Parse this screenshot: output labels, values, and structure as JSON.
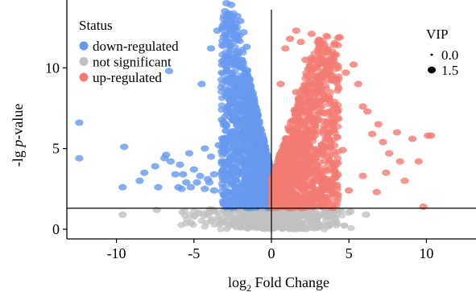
{
  "chart_data": {
    "type": "scatter",
    "title": "",
    "xlabel": "log₂ Fold Change",
    "ylabel_prefix": "-lg ",
    "ylabel_italic": "p",
    "ylabel_suffix": "-value",
    "xlim": [
      -13.2,
      13.2
    ],
    "ylim": [
      -0.6,
      14.2
    ],
    "x_ticks": [
      -10,
      -5,
      0,
      5,
      10
    ],
    "x_tick_labels": [
      "-10",
      "-5",
      "0",
      "5",
      "10"
    ],
    "y_ticks": [
      0,
      5,
      10
    ],
    "y_tick_labels": [
      "0",
      "5",
      "10"
    ],
    "grid": false,
    "reference_lines": {
      "vertical_x": 0,
      "horizontal_y": 1.3
    },
    "legend_status": {
      "title": "Status",
      "placement": "top-left",
      "entries": [
        {
          "label": "down-regulated",
          "color": "#6699EE"
        },
        {
          "label": "not significant",
          "color": "#C0C0C0"
        },
        {
          "label": "up-regulated",
          "color": "#F27B72"
        }
      ]
    },
    "legend_size": {
      "title": "VIP",
      "placement": "top-right",
      "entries": [
        {
          "label": "0.0",
          "vip": 0.0
        },
        {
          "label": "1.5",
          "vip": 1.5
        }
      ]
    },
    "colors": {
      "down": "#6699EE",
      "ns": "#C0C0C0",
      "up": "#F27B72"
    },
    "series": [
      {
        "status": "down-regulated",
        "points": [
          [
            -12.4,
            6.6
          ],
          [
            -12.4,
            4.4
          ],
          [
            -9.5,
            5.1
          ],
          [
            -9.6,
            2.6
          ],
          [
            -8.5,
            3.0
          ],
          [
            -8.2,
            3.5
          ],
          [
            -7.5,
            3.9
          ],
          [
            -7.3,
            2.6
          ],
          [
            -6.9,
            4.4
          ],
          [
            -6.8,
            4.6
          ],
          [
            -6.6,
            9.8
          ],
          [
            -6.5,
            4.2
          ],
          [
            -6.2,
            3.4
          ],
          [
            -6.0,
            2.6
          ],
          [
            -5.9,
            4.0
          ],
          [
            -5.8,
            2.5
          ],
          [
            -5.7,
            3.4
          ],
          [
            -5.5,
            2.9
          ],
          [
            -5.3,
            4.7
          ],
          [
            -5.2,
            2.6
          ],
          [
            -5.0,
            3.7
          ],
          [
            -4.8,
            2.9
          ],
          [
            -4.6,
            3.3
          ],
          [
            -4.5,
            9.0
          ],
          [
            -4.3,
            2.5
          ],
          [
            -4.3,
            5.0
          ],
          [
            -4.1,
            3.1
          ],
          [
            -4.0,
            2.9
          ],
          [
            -3.9,
            11.2
          ],
          [
            -3.9,
            4.5
          ],
          [
            -3.7,
            3.4
          ],
          [
            -3.7,
            2.4
          ],
          [
            -3.5,
            12.3
          ],
          [
            -3.4,
            5.2
          ],
          [
            -3.2,
            4.2
          ],
          [
            -3.0,
            13.5
          ],
          [
            -2.9,
            14.0
          ],
          [
            -2.6,
            13.9
          ],
          [
            -2.5,
            10.6
          ],
          [
            -2.2,
            13.2
          ],
          [
            -2.0,
            12.9
          ],
          [
            -1.8,
            12.2
          ],
          [
            -1.6,
            11.3
          ],
          [
            -1.2,
            6.5
          ],
          [
            -0.8,
            4.8
          ]
        ]
      },
      {
        "status": "not significant",
        "points": [
          [
            -9.6,
            0.9
          ],
          [
            -7.4,
            1.2
          ],
          [
            -5.2,
            0.4
          ],
          [
            -4.1,
            1.0
          ],
          [
            -3.4,
            0.6
          ],
          [
            -2.8,
            1.0
          ],
          [
            -2.5,
            0.3
          ],
          [
            -2.0,
            1.1
          ],
          [
            -1.7,
            0.5
          ],
          [
            -1.2,
            0.9
          ],
          [
            -0.9,
            0.2
          ],
          [
            -0.6,
            1.1
          ],
          [
            -0.4,
            0.6
          ],
          [
            -0.2,
            0.1
          ],
          [
            0.2,
            0.8
          ],
          [
            0.5,
            0.3
          ],
          [
            0.8,
            1.0
          ],
          [
            1.1,
            0.5
          ],
          [
            1.5,
            0.9
          ],
          [
            1.9,
            0.2
          ],
          [
            2.4,
            1.0
          ],
          [
            2.9,
            0.6
          ],
          [
            3.5,
            1.1
          ],
          [
            4.1,
            0.7
          ],
          [
            5.1,
            1.1
          ],
          [
            6.1,
            0.9
          ]
        ]
      },
      {
        "status": "up-regulated",
        "points": [
          [
            0.6,
            9.0
          ],
          [
            0.9,
            11.2
          ],
          [
            1.2,
            11.8
          ],
          [
            1.6,
            12.3
          ],
          [
            1.9,
            11.6
          ],
          [
            2.2,
            10.5
          ],
          [
            2.6,
            12.1
          ],
          [
            3.0,
            11.6
          ],
          [
            3.2,
            10.3
          ],
          [
            3.6,
            11.0
          ],
          [
            4.0,
            10.6
          ],
          [
            4.4,
            11.9
          ],
          [
            4.8,
            9.7
          ],
          [
            5.3,
            10.2
          ],
          [
            5.6,
            9.0
          ],
          [
            5.9,
            7.6
          ],
          [
            6.2,
            7.3
          ],
          [
            6.5,
            5.9
          ],
          [
            6.9,
            6.5
          ],
          [
            7.2,
            5.4
          ],
          [
            7.4,
            3.5
          ],
          [
            7.6,
            4.7
          ],
          [
            8.1,
            6.0
          ],
          [
            8.3,
            4.2
          ],
          [
            8.6,
            3.0
          ],
          [
            9.1,
            5.6
          ],
          [
            9.5,
            4.2
          ],
          [
            9.8,
            1.4
          ],
          [
            10.1,
            5.8
          ],
          [
            10.3,
            5.8
          ],
          [
            6.8,
            2.3
          ],
          [
            5.9,
            3.3
          ],
          [
            5.0,
            2.4
          ],
          [
            4.6,
            4.9
          ],
          [
            3.9,
            2.9
          ],
          [
            3.1,
            3.4
          ],
          [
            2.6,
            6.2
          ],
          [
            2.1,
            7.8
          ],
          [
            1.6,
            8.5
          ],
          [
            1.1,
            6.3
          ],
          [
            0.7,
            4.4
          ],
          [
            0.3,
            3.1
          ]
        ]
      }
    ]
  }
}
